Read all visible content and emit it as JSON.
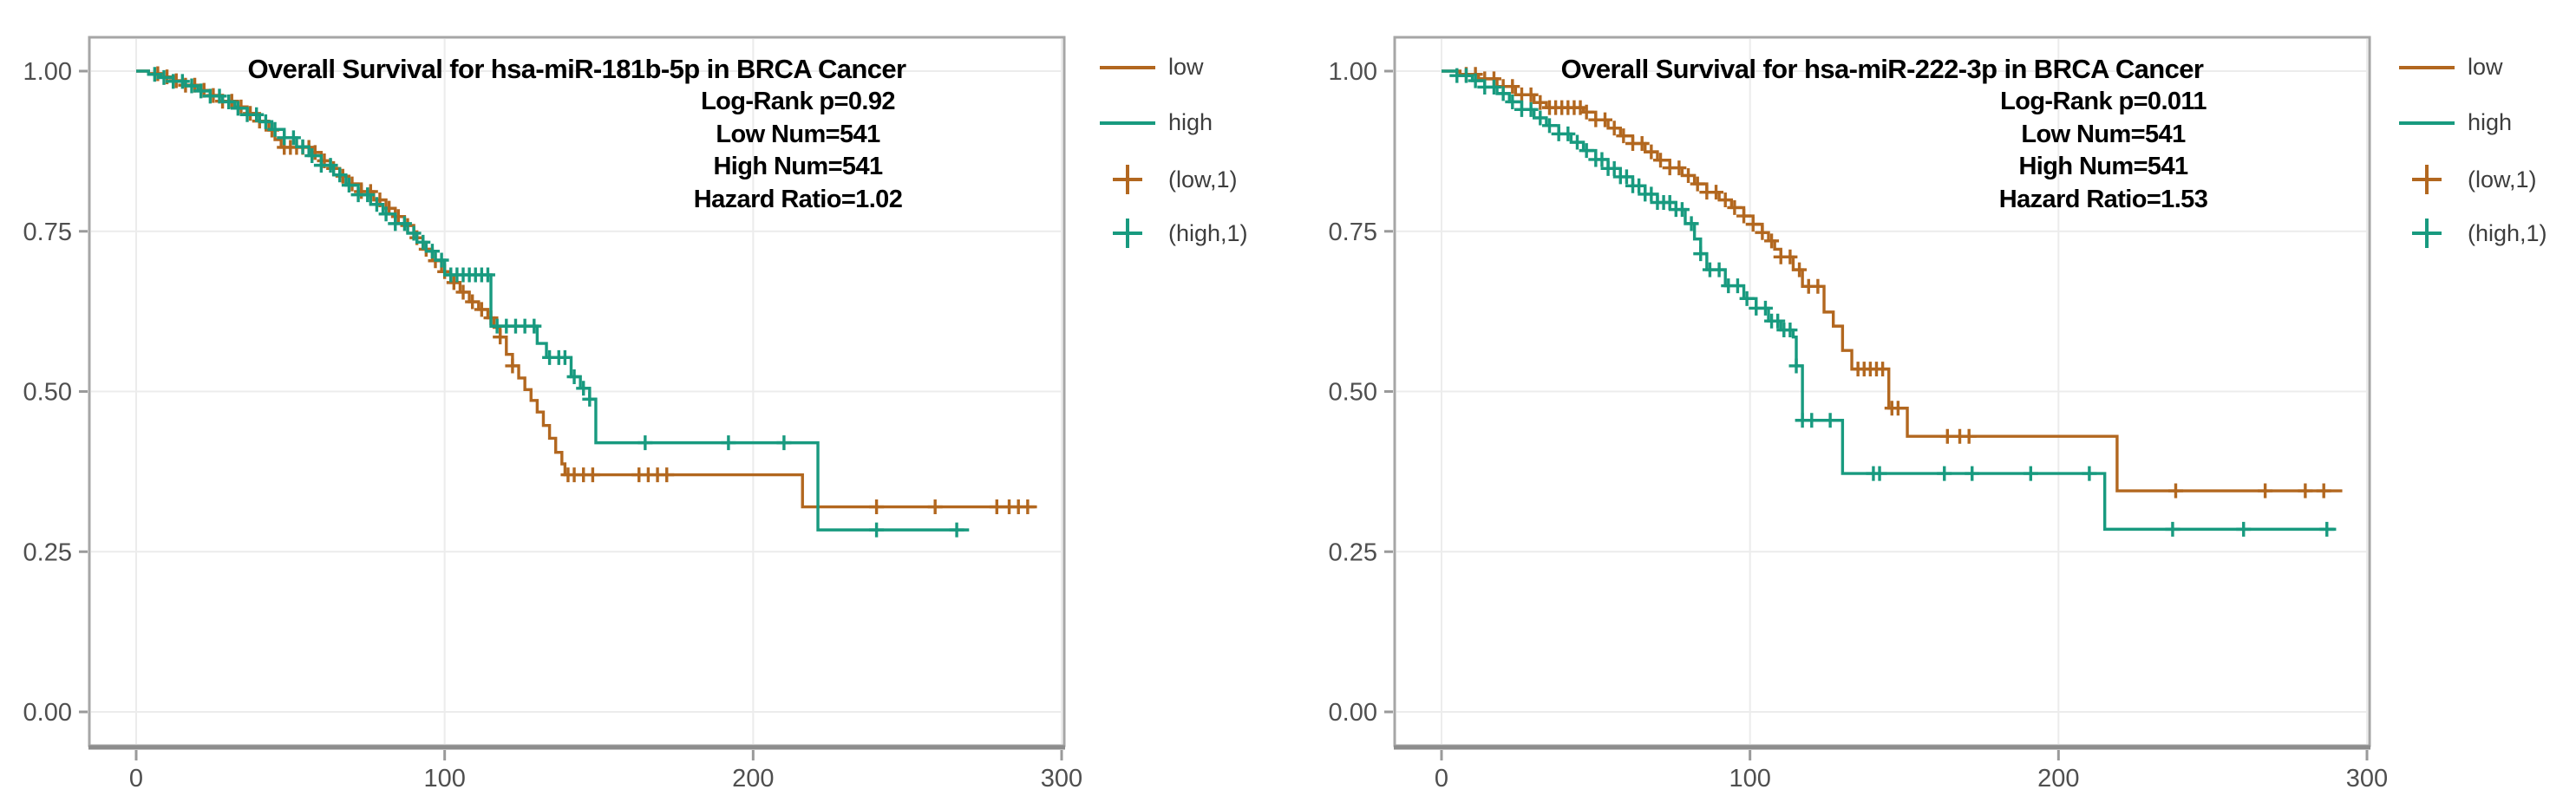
{
  "page": {
    "background": "#ffffff"
  },
  "colors": {
    "low": "#b2671f",
    "high": "#189a7f",
    "grid": "#ececec",
    "panel_border": "#a6a6a6",
    "axis_line": "#8d8d8d",
    "tick": "#9a9a9a",
    "tick_label": "#4f4f4f",
    "legend_text": "#3d3d3d",
    "title_text": "#000000"
  },
  "chart_data": [
    {
      "type": "line",
      "subtype": "kaplan-meier-step",
      "title": "Overall Survival for hsa-miR-181b-5p in BRCA Cancer",
      "stats": [
        "Log-Rank p=0.92",
        "Low Num=541",
        "High Num=541",
        "Hazard Ratio=1.02"
      ],
      "xlabel": "",
      "ylabel": "",
      "xlim": [
        0,
        300
      ],
      "ylim": [
        0.0,
        1.0
      ],
      "grid": true,
      "x_ticks": [
        {
          "label": "0",
          "value": 0
        },
        {
          "label": "100",
          "value": 100
        },
        {
          "label": "200",
          "value": 200
        },
        {
          "label": "300",
          "value": 300
        }
      ],
      "y_ticks": [
        {
          "label": "1.00",
          "value": 1.0
        },
        {
          "label": "0.75",
          "value": 0.75
        },
        {
          "label": "0.50",
          "value": 0.5
        },
        {
          "label": "0.25",
          "value": 0.25
        },
        {
          "label": "0.00",
          "value": 0.0
        }
      ],
      "legend_position": "right",
      "legend": [
        {
          "label": "low",
          "marker": "line",
          "color": "#b2671f"
        },
        {
          "label": "high",
          "marker": "line",
          "color": "#189a7f"
        },
        {
          "label": "(low,1)",
          "marker": "plus",
          "color": "#b2671f"
        },
        {
          "label": "(high,1)",
          "marker": "plus",
          "color": "#189a7f"
        }
      ],
      "series": [
        {
          "name": "low",
          "color": "#b2671f",
          "steps": [
            [
              0,
              1.0
            ],
            [
              4,
              0.996
            ],
            [
              8,
              0.991
            ],
            [
              12,
              0.985
            ],
            [
              16,
              0.978
            ],
            [
              20,
              0.97
            ],
            [
              24,
              0.962
            ],
            [
              28,
              0.953
            ],
            [
              32,
              0.944
            ],
            [
              36,
              0.934
            ],
            [
              40,
              0.922
            ],
            [
              43,
              0.908
            ],
            [
              45,
              0.893
            ],
            [
              47,
              0.881
            ],
            [
              57,
              0.873
            ],
            [
              60,
              0.86
            ],
            [
              63,
              0.848
            ],
            [
              66,
              0.836
            ],
            [
              69,
              0.824
            ],
            [
              73,
              0.812
            ],
            [
              77,
              0.799
            ],
            [
              81,
              0.786
            ],
            [
              84,
              0.773
            ],
            [
              87,
              0.759
            ],
            [
              90,
              0.74
            ],
            [
              93,
              0.722
            ],
            [
              96,
              0.704
            ],
            [
              99,
              0.687
            ],
            [
              102,
              0.67
            ],
            [
              105,
              0.655
            ],
            [
              108,
              0.64
            ],
            [
              111,
              0.628
            ],
            [
              114,
              0.615
            ],
            [
              116,
              0.6
            ],
            [
              118,
              0.585
            ],
            [
              120,
              0.558
            ],
            [
              122,
              0.54
            ],
            [
              124,
              0.521
            ],
            [
              126,
              0.503
            ],
            [
              128,
              0.486
            ],
            [
              130,
              0.468
            ],
            [
              132,
              0.447
            ],
            [
              134,
              0.427
            ],
            [
              136,
              0.405
            ],
            [
              138,
              0.387
            ],
            [
              139,
              0.37
            ],
            [
              216,
              0.32
            ],
            [
              292,
              0.32
            ]
          ],
          "censor_times": [
            7,
            10,
            13,
            16,
            19,
            22,
            25,
            28,
            31,
            34,
            37,
            40,
            44,
            48,
            50,
            52,
            54,
            56,
            58,
            61,
            64,
            67,
            70,
            73,
            76,
            79,
            82,
            85,
            88,
            91,
            94,
            97,
            100,
            103,
            106,
            109,
            112,
            115,
            118,
            122,
            140,
            142,
            145,
            148,
            163,
            166,
            169,
            172,
            240,
            259,
            279,
            283,
            286,
            289
          ]
        },
        {
          "name": "high",
          "color": "#189a7f",
          "steps": [
            [
              0,
              1.0
            ],
            [
              4,
              0.995
            ],
            [
              8,
              0.99
            ],
            [
              12,
              0.984
            ],
            [
              16,
              0.977
            ],
            [
              20,
              0.969
            ],
            [
              24,
              0.961
            ],
            [
              28,
              0.952
            ],
            [
              32,
              0.942
            ],
            [
              36,
              0.932
            ],
            [
              40,
              0.921
            ],
            [
              44,
              0.909
            ],
            [
              48,
              0.896
            ],
            [
              52,
              0.882
            ],
            [
              56,
              0.868
            ],
            [
              60,
              0.853
            ],
            [
              64,
              0.838
            ],
            [
              68,
              0.822
            ],
            [
              72,
              0.807
            ],
            [
              76,
              0.792
            ],
            [
              80,
              0.777
            ],
            [
              84,
              0.762
            ],
            [
              88,
              0.747
            ],
            [
              91,
              0.733
            ],
            [
              94,
              0.719
            ],
            [
              97,
              0.705
            ],
            [
              100,
              0.682
            ],
            [
              115,
              0.602
            ],
            [
              130,
              0.575
            ],
            [
              133,
              0.553
            ],
            [
              141,
              0.523
            ],
            [
              144,
              0.505
            ],
            [
              147,
              0.488
            ],
            [
              149,
              0.42
            ],
            [
              221,
              0.284
            ],
            [
              270,
              0.284
            ]
          ],
          "censor_times": [
            6,
            9,
            12,
            15,
            18,
            21,
            24,
            27,
            30,
            33,
            36,
            39,
            42,
            45,
            48,
            51,
            54,
            57,
            60,
            63,
            66,
            69,
            72,
            75,
            78,
            81,
            84,
            87,
            90,
            93,
            96,
            99,
            102,
            104,
            106,
            108,
            110,
            112,
            114,
            117,
            120,
            123,
            126,
            129,
            134,
            137,
            139,
            142,
            145,
            147,
            165,
            192,
            210,
            240,
            266
          ]
        }
      ]
    },
    {
      "type": "line",
      "subtype": "kaplan-meier-step",
      "title": "Overall Survival for hsa-miR-222-3p in BRCA Cancer",
      "stats": [
        "Log-Rank p=0.011",
        "Low Num=541",
        "High Num=541",
        "Hazard Ratio=1.53"
      ],
      "xlabel": "",
      "ylabel": "",
      "xlim": [
        0,
        300
      ],
      "ylim": [
        0.0,
        1.0
      ],
      "grid": true,
      "x_ticks": [
        {
          "label": "0",
          "value": 0
        },
        {
          "label": "100",
          "value": 100
        },
        {
          "label": "200",
          "value": 200
        },
        {
          "label": "300",
          "value": 300
        }
      ],
      "y_ticks": [
        {
          "label": "1.00",
          "value": 1.0
        },
        {
          "label": "0.75",
          "value": 0.75
        },
        {
          "label": "0.50",
          "value": 0.5
        },
        {
          "label": "0.25",
          "value": 0.25
        },
        {
          "label": "0.00",
          "value": 0.0
        }
      ],
      "legend_position": "right",
      "legend": [
        {
          "label": "low",
          "marker": "line",
          "color": "#b2671f"
        },
        {
          "label": "high",
          "marker": "line",
          "color": "#189a7f"
        },
        {
          "label": "(low,1)",
          "marker": "plus",
          "color": "#b2671f"
        },
        {
          "label": "(high,1)",
          "marker": "plus",
          "color": "#189a7f"
        }
      ],
      "series": [
        {
          "name": "low",
          "color": "#b2671f",
          "steps": [
            [
              0,
              1.0
            ],
            [
              6,
              0.995
            ],
            [
              12,
              0.988
            ],
            [
              18,
              0.976
            ],
            [
              24,
              0.963
            ],
            [
              30,
              0.951
            ],
            [
              34,
              0.943
            ],
            [
              46,
              0.936
            ],
            [
              50,
              0.924
            ],
            [
              54,
              0.911
            ],
            [
              58,
              0.899
            ],
            [
              62,
              0.887
            ],
            [
              66,
              0.874
            ],
            [
              70,
              0.861
            ],
            [
              74,
              0.849
            ],
            [
              78,
              0.837
            ],
            [
              82,
              0.824
            ],
            [
              86,
              0.811
            ],
            [
              90,
              0.799
            ],
            [
              94,
              0.787
            ],
            [
              98,
              0.774
            ],
            [
              101,
              0.761
            ],
            [
              104,
              0.748
            ],
            [
              106,
              0.735
            ],
            [
              108,
              0.722
            ],
            [
              110,
              0.71
            ],
            [
              114,
              0.69
            ],
            [
              117,
              0.664
            ],
            [
              124,
              0.624
            ],
            [
              127,
              0.602
            ],
            [
              130,
              0.564
            ],
            [
              133,
              0.535
            ],
            [
              145,
              0.474
            ],
            [
              151,
              0.43
            ],
            [
              219,
              0.345
            ],
            [
              292,
              0.345
            ]
          ],
          "censor_times": [
            8,
            11,
            14,
            17,
            20,
            23,
            26,
            29,
            32,
            35,
            37,
            39,
            41,
            43,
            45,
            47,
            50,
            53,
            56,
            59,
            62,
            65,
            68,
            71,
            74,
            77,
            80,
            83,
            86,
            89,
            92,
            95,
            98,
            101,
            104,
            107,
            110,
            113,
            116,
            119,
            122,
            135,
            137,
            139,
            141,
            143,
            146,
            148,
            164,
            168,
            171,
            238,
            267,
            280,
            286
          ]
        },
        {
          "name": "high",
          "color": "#189a7f",
          "steps": [
            [
              0,
              1.0
            ],
            [
              5,
              0.993
            ],
            [
              10,
              0.985
            ],
            [
              14,
              0.975
            ],
            [
              18,
              0.965
            ],
            [
              22,
              0.952
            ],
            [
              26,
              0.94
            ],
            [
              30,
              0.927
            ],
            [
              34,
              0.915
            ],
            [
              38,
              0.902
            ],
            [
              42,
              0.889
            ],
            [
              46,
              0.876
            ],
            [
              50,
              0.862
            ],
            [
              54,
              0.848
            ],
            [
              58,
              0.835
            ],
            [
              62,
              0.821
            ],
            [
              66,
              0.808
            ],
            [
              70,
              0.795
            ],
            [
              76,
              0.784
            ],
            [
              79,
              0.762
            ],
            [
              82,
              0.738
            ],
            [
              84,
              0.715
            ],
            [
              86,
              0.69
            ],
            [
              92,
              0.665
            ],
            [
              98,
              0.645
            ],
            [
              102,
              0.63
            ],
            [
              106,
              0.61
            ],
            [
              110,
              0.596
            ],
            [
              114,
              0.585
            ],
            [
              115,
              0.54
            ],
            [
              117,
              0.455
            ],
            [
              130,
              0.372
            ],
            [
              215,
              0.285
            ],
            [
              290,
              0.285
            ]
          ],
          "censor_times": [
            5,
            8,
            11,
            14,
            17,
            20,
            23,
            26,
            29,
            32,
            35,
            38,
            41,
            44,
            47,
            50,
            52,
            54,
            56,
            58,
            60,
            62,
            64,
            66,
            68,
            70,
            72,
            74,
            76,
            78,
            81,
            84,
            87,
            90,
            93,
            96,
            99,
            102,
            105,
            107,
            109,
            111,
            113,
            115,
            117,
            120,
            126,
            140,
            142,
            163,
            172,
            191,
            210,
            237,
            260,
            287
          ]
        }
      ]
    }
  ]
}
